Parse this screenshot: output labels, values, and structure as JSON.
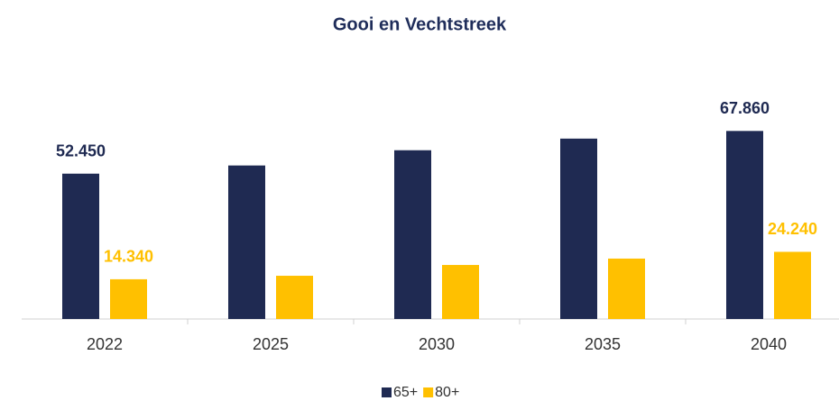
{
  "chart_data": {
    "type": "bar",
    "title": "Gooi en Vechtstreek",
    "categories": [
      "2022",
      "2025",
      "2030",
      "2035",
      "2040"
    ],
    "ylim": [
      0,
      80000
    ],
    "legend": "bottom",
    "series": [
      {
        "name": "65+",
        "color": "#1f2a52",
        "values": [
          52450,
          55400,
          60900,
          65100,
          67860
        ],
        "value_labels": [
          "52.450",
          null,
          null,
          null,
          "67.860"
        ]
      },
      {
        "name": "80+",
        "color": "#ffc000",
        "values": [
          14340,
          15600,
          19500,
          21800,
          24240
        ],
        "value_labels": [
          "14.340",
          null,
          null,
          null,
          "24.240"
        ]
      }
    ]
  }
}
